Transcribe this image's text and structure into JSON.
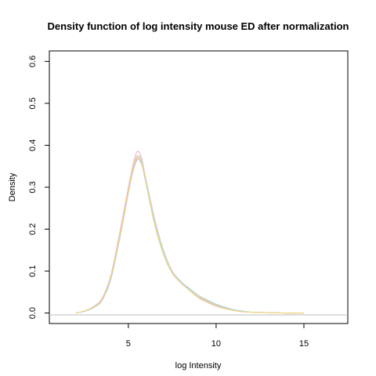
{
  "chart_data": {
    "type": "line",
    "title": "Density function of log intensity mouse ED after normalization",
    "xlabel": "log Intensity",
    "ylabel": "Density",
    "xlim": [
      0.5,
      17.5
    ],
    "ylim": [
      -0.025,
      0.625
    ],
    "xticks": [
      5,
      10,
      15
    ],
    "yticks": [
      0.0,
      0.1,
      0.2,
      0.3,
      0.4,
      0.5,
      0.6
    ],
    "xtick_labels": [
      "5",
      "10",
      "15"
    ],
    "ytick_labels": [
      "0.0",
      "0.1",
      "0.2",
      "0.3",
      "0.4",
      "0.5",
      "0.6"
    ],
    "legend": "none",
    "grid": false,
    "baseline_color": "#bdbdbd",
    "x": [
      2.0,
      2.5,
      3.0,
      3.5,
      4.0,
      4.5,
      5.0,
      5.25,
      5.5,
      5.75,
      6.0,
      6.5,
      7.0,
      7.5,
      8.0,
      8.5,
      9.0,
      9.5,
      10.0,
      10.5,
      11.0,
      11.5,
      12.0,
      13.0,
      14.0,
      15.0
    ],
    "series": [
      {
        "color": "#f4a6c9",
        "values": [
          0.0,
          0.005,
          0.015,
          0.035,
          0.09,
          0.19,
          0.3,
          0.35,
          0.385,
          0.37,
          0.32,
          0.22,
          0.15,
          0.1,
          0.075,
          0.055,
          0.038,
          0.027,
          0.018,
          0.012,
          0.007,
          0.004,
          0.002,
          0.001,
          0.0,
          0.0
        ]
      },
      {
        "color": "#9fd9a8",
        "values": [
          0.0,
          0.004,
          0.013,
          0.03,
          0.085,
          0.18,
          0.29,
          0.34,
          0.37,
          0.36,
          0.31,
          0.21,
          0.14,
          0.095,
          0.072,
          0.055,
          0.04,
          0.03,
          0.02,
          0.013,
          0.008,
          0.004,
          0.002,
          0.001,
          0.0,
          0.0
        ]
      },
      {
        "color": "#a7c7ef",
        "values": [
          0.0,
          0.004,
          0.012,
          0.03,
          0.08,
          0.175,
          0.285,
          0.335,
          0.365,
          0.355,
          0.31,
          0.215,
          0.145,
          0.1,
          0.075,
          0.058,
          0.042,
          0.031,
          0.021,
          0.014,
          0.008,
          0.005,
          0.002,
          0.001,
          0.0,
          0.0
        ]
      },
      {
        "color": "#f1c9a0",
        "values": [
          0.0,
          0.005,
          0.014,
          0.033,
          0.09,
          0.185,
          0.295,
          0.345,
          0.375,
          0.36,
          0.315,
          0.215,
          0.145,
          0.095,
          0.072,
          0.053,
          0.036,
          0.025,
          0.016,
          0.01,
          0.006,
          0.003,
          0.002,
          0.001,
          0.0,
          0.0
        ]
      },
      {
        "color": "#e6b8e8",
        "values": [
          0.0,
          0.004,
          0.014,
          0.034,
          0.088,
          0.18,
          0.29,
          0.34,
          0.368,
          0.36,
          0.32,
          0.225,
          0.15,
          0.1,
          0.073,
          0.054,
          0.038,
          0.027,
          0.017,
          0.011,
          0.006,
          0.003,
          0.002,
          0.001,
          0.0,
          0.0
        ]
      },
      {
        "color": "#b8e0e0",
        "values": [
          0.0,
          0.004,
          0.013,
          0.031,
          0.085,
          0.18,
          0.29,
          0.34,
          0.372,
          0.365,
          0.318,
          0.22,
          0.148,
          0.098,
          0.074,
          0.056,
          0.041,
          0.029,
          0.019,
          0.012,
          0.007,
          0.004,
          0.002,
          0.001,
          0.0,
          0.0
        ]
      },
      {
        "color": "#f7d56e",
        "values": [
          0.0,
          0.005,
          0.014,
          0.032,
          0.087,
          0.182,
          0.292,
          0.342,
          0.37,
          0.358,
          0.312,
          0.212,
          0.142,
          0.096,
          0.071,
          0.054,
          0.039,
          0.028,
          0.018,
          0.011,
          0.006,
          0.003,
          0.002,
          0.001,
          0.0,
          0.0
        ]
      }
    ]
  }
}
